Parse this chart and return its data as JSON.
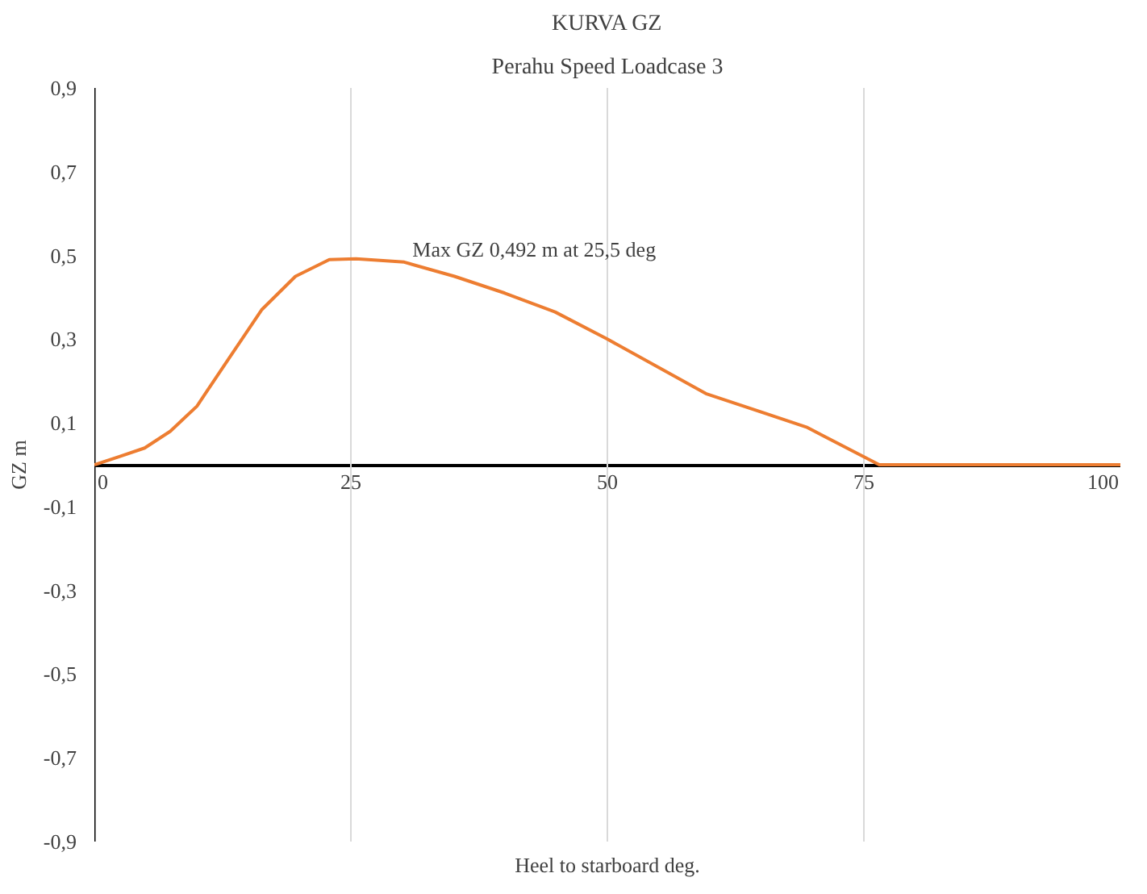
{
  "chart_data": {
    "type": "line",
    "title": "KURVA GZ",
    "subtitle": "Perahu Speed Loadcase 3",
    "xlabel": "Heel to starboard deg.",
    "ylabel": "GZ m",
    "x": [
      0,
      2.5,
      4.9,
      7.4,
      10,
      13,
      16.3,
      19.6,
      22.9,
      25.5,
      30.2,
      35.1,
      40,
      44.9,
      50,
      59.6,
      69.4,
      76.5,
      80,
      90,
      100
    ],
    "series": [
      {
        "color": "#ed7d31",
        "values": [
          0,
          0.02,
          0.04,
          0.08,
          0.14,
          0.25,
          0.37,
          0.45,
          0.49,
          0.492,
          0.484,
          0.45,
          0.41,
          0.365,
          0.3,
          0.17,
          0.09,
          0,
          0,
          0,
          0
        ]
      }
    ],
    "xlim": [
      0,
      100
    ],
    "ylim": [
      -0.9,
      0.9
    ],
    "xticks": [
      0,
      25,
      50,
      75,
      100
    ],
    "yticks": [
      {
        "value": 0.9,
        "label": "0,9"
      },
      {
        "value": 0.7,
        "label": "0,7"
      },
      {
        "value": 0.5,
        "label": "0,5"
      },
      {
        "value": 0.3,
        "label": "0,3"
      },
      {
        "value": 0.1,
        "label": "0,1"
      },
      {
        "value": -0.1,
        "label": "-0,1"
      },
      {
        "value": -0.3,
        "label": "-0,3"
      },
      {
        "value": -0.5,
        "label": "-0,5"
      },
      {
        "value": -0.7,
        "label": "-0,7"
      },
      {
        "value": -0.9,
        "label": "-0,9"
      }
    ],
    "grid": "x",
    "marker": "none",
    "line_style": "solid",
    "annotations": [
      "Max GZ 0,492 m at 25,5 deg"
    ]
  }
}
